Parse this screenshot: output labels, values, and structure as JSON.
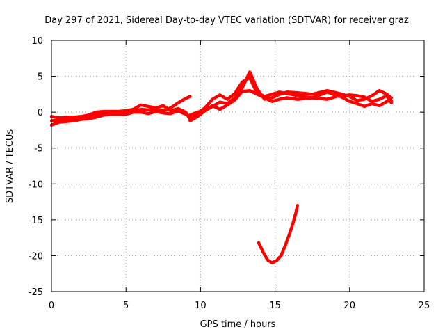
{
  "chart_data": {
    "type": "line",
    "title": "Day 297 of 2021, Sidereal Day-to-day VTEC variation (SDTVAR) for receiver graz",
    "xlabel": "GPS time / hours",
    "ylabel": "SDTVAR / TECUs",
    "xlim": [
      0,
      25
    ],
    "ylim": [
      -25,
      10
    ],
    "xticks": [
      0,
      5,
      10,
      15,
      20,
      25
    ],
    "yticks": [
      -25,
      -20,
      -15,
      -10,
      -5,
      0,
      5,
      10
    ],
    "grid": true,
    "color": "#ff0000",
    "series": [
      {
        "name": "sdtvar-band-a",
        "points": [
          [
            0,
            -1.2
          ],
          [
            0.5,
            -1.1
          ],
          [
            1,
            -1.1
          ],
          [
            1.5,
            -1.0
          ],
          [
            2,
            -0.9
          ],
          [
            2.5,
            -0.6
          ],
          [
            3,
            -0.4
          ],
          [
            3.5,
            -0.2
          ],
          [
            4,
            -0.1
          ],
          [
            4.5,
            -0.1
          ],
          [
            5,
            -0.1
          ],
          [
            5.5,
            0.1
          ],
          [
            6,
            0.4
          ],
          [
            6.5,
            0.3
          ],
          [
            7,
            0.4
          ],
          [
            7.5,
            0.2
          ],
          [
            8,
            0.6
          ],
          [
            8.5,
            1.3
          ],
          [
            9,
            1.9
          ],
          [
            9.3,
            2.2
          ]
        ]
      },
      {
        "name": "sdtvar-band-b",
        "points": [
          [
            0,
            -0.6
          ],
          [
            0.5,
            -0.8
          ],
          [
            1,
            -0.7
          ],
          [
            1.5,
            -0.7
          ],
          [
            2,
            -0.6
          ],
          [
            2.5,
            -0.4
          ],
          [
            3,
            0.0
          ],
          [
            3.5,
            0.1
          ],
          [
            4,
            0.1
          ],
          [
            4.5,
            0.1
          ],
          [
            5,
            0.2
          ],
          [
            5.5,
            0.4
          ],
          [
            6,
            1.0
          ],
          [
            6.5,
            0.8
          ],
          [
            7,
            0.6
          ],
          [
            7.5,
            0.9
          ],
          [
            8,
            0.2
          ],
          [
            8.5,
            0.5
          ],
          [
            9,
            0.0
          ],
          [
            9.3,
            -1.0
          ]
        ]
      },
      {
        "name": "sdtvar-band-c",
        "points": [
          [
            0,
            -1.8
          ],
          [
            0.5,
            -1.4
          ],
          [
            1,
            -1.3
          ],
          [
            1.5,
            -1.2
          ],
          [
            2,
            -1.0
          ],
          [
            2.5,
            -0.9
          ],
          [
            3,
            -0.7
          ],
          [
            3.5,
            -0.4
          ],
          [
            4,
            -0.3
          ],
          [
            4.5,
            -0.3
          ],
          [
            5,
            -0.3
          ],
          [
            5.5,
            0.0
          ],
          [
            6,
            0.0
          ],
          [
            6.5,
            -0.2
          ],
          [
            7,
            0.1
          ],
          [
            7.5,
            -0.1
          ],
          [
            8,
            -0.2
          ],
          [
            8.5,
            0.2
          ],
          [
            9,
            -0.3
          ],
          [
            9.3,
            -0.6
          ]
        ]
      },
      {
        "name": "sdtvar-band-d",
        "points": [
          [
            9.3,
            -1.2
          ],
          [
            9.8,
            -0.6
          ],
          [
            10.3,
            0.2
          ],
          [
            10.8,
            0.8
          ],
          [
            11.3,
            1.4
          ],
          [
            11.8,
            1.2
          ],
          [
            12.3,
            2.0
          ],
          [
            12.8,
            3.4
          ],
          [
            13.3,
            5.6
          ],
          [
            13.8,
            3.2
          ],
          [
            14.3,
            1.8
          ],
          [
            14.8,
            2.0
          ],
          [
            15.3,
            2.5
          ],
          [
            15.8,
            2.8
          ],
          [
            16.5,
            2.7
          ],
          [
            17.5,
            2.5
          ],
          [
            18.5,
            3.0
          ],
          [
            19.3,
            2.6
          ],
          [
            20,
            2.2
          ],
          [
            20.5,
            1.6
          ],
          [
            21,
            1.8
          ],
          [
            21.5,
            2.3
          ],
          [
            22,
            3.0
          ],
          [
            22.5,
            2.5
          ],
          [
            22.8,
            2.0
          ]
        ]
      },
      {
        "name": "sdtvar-band-e",
        "points": [
          [
            9.3,
            -0.8
          ],
          [
            9.8,
            -0.2
          ],
          [
            10.3,
            0.6
          ],
          [
            10.8,
            1.8
          ],
          [
            11.3,
            2.4
          ],
          [
            11.8,
            1.8
          ],
          [
            12.3,
            2.6
          ],
          [
            12.8,
            4.2
          ],
          [
            13.3,
            4.8
          ],
          [
            13.8,
            2.6
          ],
          [
            14.3,
            2.2
          ],
          [
            14.8,
            2.5
          ],
          [
            15.3,
            2.8
          ],
          [
            15.8,
            2.6
          ],
          [
            16.5,
            2.3
          ],
          [
            17.5,
            2.0
          ],
          [
            18.5,
            2.8
          ],
          [
            19.3,
            2.2
          ],
          [
            20,
            2.4
          ],
          [
            20.5,
            2.3
          ],
          [
            21,
            2.1
          ],
          [
            21.5,
            1.5
          ],
          [
            22,
            1.8
          ],
          [
            22.5,
            2.3
          ],
          [
            22.8,
            1.3
          ]
        ]
      },
      {
        "name": "sdtvar-band-f",
        "points": [
          [
            9.3,
            -0.4
          ],
          [
            9.8,
            0.0
          ],
          [
            10.3,
            0.3
          ],
          [
            10.8,
            0.9
          ],
          [
            11.3,
            0.4
          ],
          [
            11.8,
            1.0
          ],
          [
            12.3,
            1.7
          ],
          [
            12.8,
            2.9
          ],
          [
            13.3,
            3.0
          ],
          [
            13.8,
            2.5
          ],
          [
            14.3,
            2.0
          ],
          [
            14.8,
            1.5
          ],
          [
            15.3,
            1.8
          ],
          [
            15.8,
            2.0
          ],
          [
            16.5,
            1.8
          ],
          [
            17.5,
            2.0
          ],
          [
            18.5,
            1.8
          ],
          [
            19.3,
            2.3
          ],
          [
            20,
            1.5
          ],
          [
            20.5,
            1.2
          ],
          [
            21,
            0.8
          ],
          [
            21.5,
            1.2
          ],
          [
            22,
            0.9
          ],
          [
            22.5,
            1.5
          ],
          [
            22.8,
            1.6
          ]
        ]
      },
      {
        "name": "sdtvar-dip",
        "points": [
          [
            13.9,
            -18.2
          ],
          [
            14.2,
            -19.5
          ],
          [
            14.5,
            -20.6
          ],
          [
            14.8,
            -21.0
          ],
          [
            15.1,
            -20.7
          ],
          [
            15.4,
            -20.0
          ],
          [
            15.7,
            -18.5
          ],
          [
            16.0,
            -16.8
          ],
          [
            16.2,
            -15.5
          ],
          [
            16.4,
            -14.0
          ],
          [
            16.5,
            -13.0
          ]
        ]
      }
    ]
  }
}
